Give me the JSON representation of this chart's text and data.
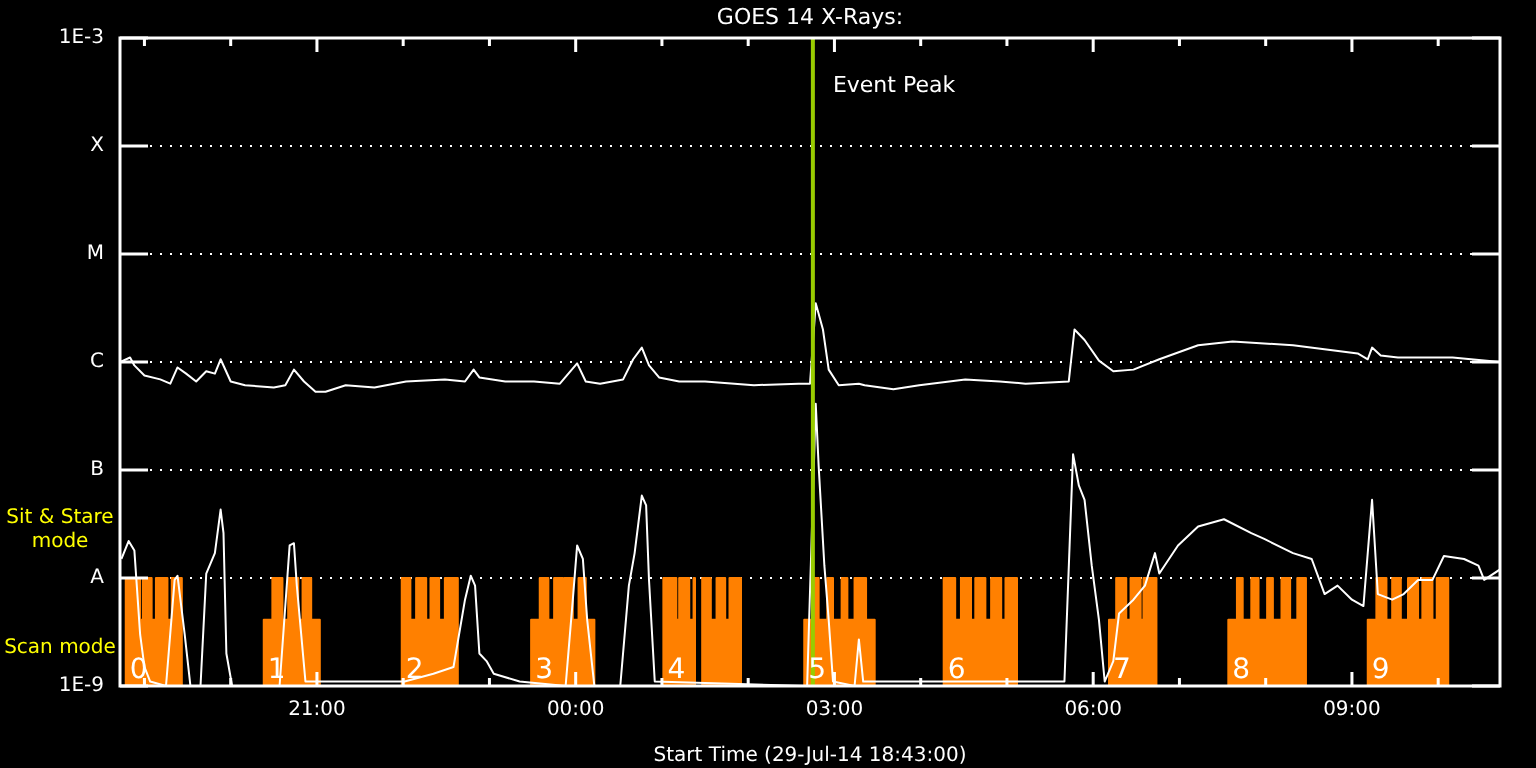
{
  "chart_data": {
    "type": "line",
    "title": "GOES 14 X-Rays:",
    "xlabel": "Start Time (29-Jul-14 18:43:00)",
    "log": "y",
    "grid": "y",
    "legend": false,
    "marker": "none",
    "xlim": [
      "--07-29T18:43",
      "--07-30T10:43"
    ],
    "xticks": [
      {
        "value": "--07-29T19:00",
        "label": null
      },
      {
        "value": "--07-29T20:00",
        "label": null
      },
      {
        "value": "--07-29T21:00",
        "label": "21:00"
      },
      {
        "value": "--07-29T22:00",
        "label": null
      },
      {
        "value": "--07-29T23:00",
        "label": null
      },
      {
        "value": "--07-30T00:00",
        "label": "00:00"
      },
      {
        "value": "--07-30T01:00",
        "label": null
      },
      {
        "value": "--07-30T02:00",
        "label": null
      },
      {
        "value": "--07-30T03:00",
        "label": "03:00"
      },
      {
        "value": "--07-30T04:00",
        "label": null
      },
      {
        "value": "--07-30T05:00",
        "label": null
      },
      {
        "value": "--07-30T06:00",
        "label": "06:00"
      },
      {
        "value": "--07-30T07:00",
        "label": null
      },
      {
        "value": "--07-30T08:00",
        "label": null
      },
      {
        "value": "--07-30T09:00",
        "label": "09:00"
      },
      {
        "value": "--07-30T10:00",
        "label": null
      }
    ],
    "ylim": [
      1e-09,
      0.001
    ],
    "yticks": [
      {
        "value": 1e-09,
        "label": "1E-9"
      },
      {
        "value": 1e-08,
        "label": "A"
      },
      {
        "value": 1e-07,
        "label": "B"
      },
      {
        "value": 1e-06,
        "label": "C"
      },
      {
        "value": 1e-05,
        "label": "M"
      },
      {
        "value": 0.0001,
        "label": "X"
      },
      {
        "value": 0.001,
        "label": "1E-3"
      }
    ],
    "ref_lines": [
      {
        "axis": "x",
        "value": "--07-30T02:45",
        "label": "Event Peak",
        "color": "#99cc00"
      }
    ],
    "annotations": [
      "Sit & Stare mode",
      "Scan mode",
      "0",
      "1",
      "2",
      "3",
      "4",
      "5",
      "6",
      "7",
      "8",
      "9"
    ],
    "series": [
      {
        "type": "line",
        "color": "#ffffff",
        "x": [
          "--07-29T18:43",
          "--07-29T18:50",
          "--07-29T18:53",
          "--07-29T19:00",
          "--07-29T19:11",
          "--07-29T19:18",
          "--07-29T19:23",
          "--07-29T19:29",
          "--07-29T19:36",
          "--07-29T19:43",
          "--07-29T19:49",
          "--07-29T19:53",
          "--07-29T20:00",
          "--07-29T20:10",
          "--07-29T20:30",
          "--07-29T20:38",
          "--07-29T20:44",
          "--07-29T20:51",
          "--07-29T20:59",
          "--07-29T21:06",
          "--07-29T21:20",
          "--07-29T21:40",
          "--07-29T22:02",
          "--07-29T22:29",
          "--07-29T22:43",
          "--07-29T22:49",
          "--07-29T22:53",
          "--07-29T23:11",
          "--07-29T23:31",
          "--07-29T23:49",
          "--07-30T00:01",
          "--07-30T00:07",
          "--07-30T00:17",
          "--07-30T00:33",
          "--07-30T00:40",
          "--07-30T00:46",
          "--07-30T00:51",
          "--07-30T00:58",
          "--07-30T01:12",
          "--07-30T01:30",
          "--07-30T02:04",
          "--07-30T02:35",
          "--07-30T02:43",
          "--07-30T02:47",
          "--07-30T02:52",
          "--07-30T02:56",
          "--07-30T03:03",
          "--07-30T03:17",
          "--07-30T03:21",
          "--07-30T03:41",
          "--07-30T03:59",
          "--07-30T04:31",
          "--07-30T04:55",
          "--07-30T05:13",
          "--07-30T05:43",
          "--07-30T05:47",
          "--07-30T05:54",
          "--07-30T06:04",
          "--07-30T06:14",
          "--07-30T06:28",
          "--07-30T06:46",
          "--07-30T07:13",
          "--07-30T07:37",
          "--07-30T08:19",
          "--07-30T09:04",
          "--07-30T09:11",
          "--07-30T09:14",
          "--07-30T09:20",
          "--07-30T09:32",
          "--07-30T10:10",
          "--07-30T10:43"
        ],
        "values": [
          1e-06,
          1.1e-06,
          9.3e-07,
          7.5e-07,
          6.9e-07,
          6.3e-07,
          8.9e-07,
          7.8e-07,
          6.6e-07,
          8.2e-07,
          7.8e-07,
          1.06e-06,
          6.6e-07,
          6.1e-07,
          5.8e-07,
          6.1e-07,
          8.5e-07,
          6.6e-07,
          5.3e-07,
          5.3e-07,
          6.1e-07,
          5.8e-07,
          6.6e-07,
          6.9e-07,
          6.6e-07,
          8.5e-07,
          7.2e-07,
          6.6e-07,
          6.6e-07,
          6.3e-07,
          9.7e-07,
          6.6e-07,
          6.3e-07,
          6.9e-07,
          1.06e-06,
          1.36e-06,
          9.3e-07,
          7.2e-07,
          6.6e-07,
          6.6e-07,
          6.1e-07,
          6.3e-07,
          6.3e-07,
          3.5e-06,
          2e-06,
          8.5e-07,
          6.1e-07,
          6.3e-07,
          6.1e-07,
          5.6e-07,
          6.1e-07,
          6.9e-07,
          6.6e-07,
          6.3e-07,
          6.6e-07,
          2e-06,
          1.6e-06,
          1.03e-06,
          8.2e-07,
          8.5e-07,
          1.06e-06,
          1.43e-06,
          1.55e-06,
          1.43e-06,
          1.2e-06,
          1.06e-06,
          1.36e-06,
          1.15e-06,
          1.1e-06,
          1.1e-06,
          1e-06
        ]
      },
      {
        "type": "line",
        "color": "#ffffff",
        "x": [
          "--07-29T18:44",
          "--07-29T18:49",
          "--07-29T18:53",
          "--07-29T18:57",
          "--07-29T19:00",
          "--07-29T19:04",
          "--07-29T19:15",
          "--07-29T19:21",
          "--07-29T19:23",
          "--07-29T19:28",
          "--07-29T19:32",
          "--07-29T19:39",
          "--07-29T19:43",
          "--07-29T19:49",
          "--07-29T19:53",
          "--07-29T19:55",
          "--07-29T19:57",
          "--07-29T20:01",
          "--07-29T20:34",
          "--07-29T20:41",
          "--07-29T20:44",
          "--07-29T20:46",
          "--07-29T20:52",
          "--07-29T22:01",
          "--07-29T22:21",
          "--07-29T22:35",
          "--07-29T22:43",
          "--07-29T22:47",
          "--07-29T22:50",
          "--07-29T22:53",
          "--07-29T22:58",
          "--07-29T23:03",
          "--07-29T23:21",
          "--07-29T23:53",
          "--07-29T23:58",
          "--07-30T00:01",
          "--07-30T00:05",
          "--07-30T00:08",
          "--07-30T00:13",
          "--07-30T00:31",
          "--07-30T00:37",
          "--07-30T00:41",
          "--07-30T00:46",
          "--07-30T00:49",
          "--07-30T00:51",
          "--07-30T00:55",
          "--07-30T02:41",
          "--07-30T02:47",
          "--07-30T02:49",
          "--07-30T02:53",
          "--07-30T02:56",
          "--07-30T02:59",
          "--07-30T03:14",
          "--07-30T03:17",
          "--07-30T03:20",
          "--07-30T05:40",
          "--07-30T05:46",
          "--07-30T05:50",
          "--07-30T05:54",
          "--07-30T05:59",
          "--07-30T06:04",
          "--07-30T06:08",
          "--07-30T06:14",
          "--07-30T06:18",
          "--07-30T06:28",
          "--07-30T06:36",
          "--07-30T06:43",
          "--07-30T06:46",
          "--07-30T06:59",
          "--07-30T07:13",
          "--07-30T07:31",
          "--07-30T07:50",
          "--07-30T07:59",
          "--07-30T08:19",
          "--07-30T08:32",
          "--07-30T08:41",
          "--07-30T08:50",
          "--07-30T09:00",
          "--07-30T09:08",
          "--07-30T09:14",
          "--07-30T09:18",
          "--07-30T09:28",
          "--07-30T09:36",
          "--07-30T09:46",
          "--07-30T09:56",
          "--07-30T10:04",
          "--07-30T10:18",
          "--07-30T10:28",
          "--07-30T10:32",
          "--07-30T10:43"
        ],
        "values": [
          1.5e-08,
          2.2e-08,
          1.8e-08,
          3e-09,
          1.5e-09,
          1.1e-09,
          1e-09,
          9.6e-09,
          1.05e-08,
          3e-09,
          1e-09,
          1e-09,
          1.1e-08,
          1.7e-08,
          4.3e-08,
          2.6e-08,
          2e-09,
          1e-09,
          1e-09,
          2e-08,
          2.1e-08,
          8.5e-09,
          1.1e-09,
          1.1e-09,
          1.3e-09,
          1.5e-09,
          6.3e-09,
          1.05e-08,
          8.5e-09,
          2e-09,
          1.7e-09,
          1.3e-09,
          1.1e-09,
          1e-09,
          6.3e-09,
          2e-08,
          1.5e-08,
          4.1e-09,
          1e-09,
          1e-09,
          8.5e-09,
          1.7e-08,
          5.8e-08,
          4.7e-08,
          9.6e-09,
          1.1e-09,
          1e-09,
          4.1e-07,
          1.1e-07,
          1.3e-08,
          4.1e-09,
          1.1e-09,
          1e-09,
          2.7e-09,
          1.1e-09,
          1.1e-09,
          1.4e-07,
          7.2e-08,
          5.3e-08,
          1.3e-08,
          4.1e-09,
          1.1e-09,
          1.7e-09,
          4.7e-09,
          6.3e-09,
          8.5e-09,
          1.7e-08,
          1.1e-08,
          2e-08,
          3e-08,
          3.5e-08,
          2.6e-08,
          2.3e-08,
          1.7e-08,
          1.5e-08,
          7.1e-09,
          8.5e-09,
          6.3e-09,
          5.5e-09,
          5.3e-08,
          7.1e-09,
          6.3e-09,
          7.1e-09,
          9.6e-09,
          9.6e-09,
          1.6e-08,
          1.5e-08,
          1.3e-08,
          9.6e-09,
          1.2e-08
        ]
      },
      {
        "type": "area",
        "color": "#ff8000",
        "x": [
          "--07-29T18:47",
          "--07-29T18:47",
          "--07-29T18:57",
          "--07-29T18:57",
          "--07-29T18:59",
          "--07-29T18:59",
          "--07-29T19:05",
          "--07-29T19:05",
          "--07-29T19:08",
          "--07-29T19:08",
          "--07-29T19:16",
          "--07-29T19:16",
          "--07-29T19:19",
          "--07-29T19:19",
          "--07-29T19:26",
          "--07-29T19:26",
          "--07-29T20:23",
          "--07-29T20:23",
          "--07-29T20:29",
          "--07-29T20:29",
          "--07-29T20:36",
          "--07-29T20:36",
          "--07-29T20:40",
          "--07-29T20:40",
          "--07-29T20:47",
          "--07-29T20:47",
          "--07-29T20:50",
          "--07-29T20:50",
          "--07-29T20:56",
          "--07-29T20:56",
          "--07-29T21:02",
          "--07-29T21:02",
          "--07-29T21:59",
          "--07-29T21:59",
          "--07-29T22:05",
          "--07-29T22:05",
          "--07-29T22:09",
          "--07-29T22:09",
          "--07-29T22:16",
          "--07-29T22:16",
          "--07-29T22:19",
          "--07-29T22:19",
          "--07-29T22:25",
          "--07-29T22:25",
          "--07-29T22:29",
          "--07-29T22:29",
          "--07-29T22:38",
          "--07-29T22:38",
          "--07-29T23:29",
          "--07-29T23:29",
          "--07-29T23:35",
          "--07-29T23:35",
          "--07-29T23:41",
          "--07-29T23:41",
          "--07-29T23:45",
          "--07-29T23:45",
          "--07-29T23:51",
          "--07-29T23:51",
          "--07-29T23:52",
          "--07-29T23:52",
          "--07-29T23:58",
          "--07-29T23:58",
          "--07-30T00:02",
          "--07-30T00:02",
          "--07-30T00:07",
          "--07-30T00:07",
          "--07-30T00:13",
          "--07-30T00:13",
          "--07-30T01:01",
          "--07-30T01:01",
          "--07-30T01:10",
          "--07-30T01:10",
          "--07-30T01:12",
          "--07-30T01:12",
          "--07-30T01:19",
          "--07-30T01:19",
          "--07-30T01:22",
          "--07-30T01:22",
          "--07-30T01:23",
          "--07-30T01:23",
          "--07-30T01:28",
          "--07-30T01:28",
          "--07-30T01:34",
          "--07-30T01:34",
          "--07-30T01:38",
          "--07-30T01:38",
          "--07-30T01:44",
          "--07-30T01:44",
          "--07-30T01:47",
          "--07-30T01:47",
          "--07-30T01:55",
          "--07-30T01:55",
          "--07-30T02:39",
          "--07-30T02:39",
          "--07-30T02:46",
          "--07-30T02:46",
          "--07-30T02:49",
          "--07-30T02:49",
          "--07-30T02:55",
          "--07-30T02:55",
          "--07-30T02:59",
          "--07-30T02:59",
          "--07-30T03:05",
          "--07-30T03:05",
          "--07-30T03:09",
          "--07-30T03:09",
          "--07-30T03:14",
          "--07-30T03:14",
          "--07-30T03:22",
          "--07-30T03:22",
          "--07-30T03:28",
          "--07-30T03:28",
          "--07-30T04:16",
          "--07-30T04:16",
          "--07-30T04:24",
          "--07-30T04:24",
          "--07-30T04:28",
          "--07-30T04:28",
          "--07-30T04:35",
          "--07-30T04:35",
          "--07-30T04:38",
          "--07-30T04:38",
          "--07-30T04:45",
          "--07-30T04:45",
          "--07-30T04:49",
          "--07-30T04:49",
          "--07-30T04:56",
          "--07-30T04:56",
          "--07-30T04:59",
          "--07-30T04:59",
          "--07-30T05:07",
          "--07-30T05:07",
          "--07-30T06:11",
          "--07-30T06:11",
          "--07-30T06:16",
          "--07-30T06:16",
          "--07-30T06:23",
          "--07-30T06:23",
          "--07-30T06:26",
          "--07-30T06:26",
          "--07-30T06:33",
          "--07-30T06:33",
          "--07-30T06:35",
          "--07-30T06:35",
          "--07-30T06:44",
          "--07-30T06:44",
          "--07-30T07:34",
          "--07-30T07:34",
          "--07-30T07:40",
          "--07-30T07:40",
          "--07-30T07:44",
          "--07-30T07:44",
          "--07-30T07:50",
          "--07-30T07:50",
          "--07-30T07:55",
          "--07-30T07:55",
          "--07-30T08:01",
          "--07-30T08:01",
          "--07-30T08:05",
          "--07-30T08:05",
          "--07-30T08:11",
          "--07-30T08:11",
          "--07-30T08:17",
          "--07-30T08:17",
          "--07-30T08:22",
          "--07-30T08:22",
          "--07-30T08:28",
          "--07-30T08:28",
          "--07-30T09:11",
          "--07-30T09:11",
          "--07-30T09:17",
          "--07-30T09:17",
          "--07-30T09:24",
          "--07-30T09:24",
          "--07-30T09:28",
          "--07-30T09:28",
          "--07-30T09:34",
          "--07-30T09:34",
          "--07-30T09:39",
          "--07-30T09:39",
          "--07-30T09:46",
          "--07-30T09:46",
          "--07-30T09:49",
          "--07-30T09:49",
          "--07-30T09:56",
          "--07-30T09:56",
          "--07-30T09:59",
          "--07-30T09:59",
          "--07-30T10:07",
          "--07-30T10:07"
        ],
        "values": [
          1e-09,
          1e-08,
          1e-08,
          4.1e-09,
          4.1e-09,
          1e-08,
          1e-08,
          4.1e-09,
          4.1e-09,
          1e-08,
          1e-08,
          4.1e-09,
          4.1e-09,
          1e-08,
          1e-08,
          1e-09,
          1e-09,
          4.1e-09,
          4.1e-09,
          1e-08,
          1e-08,
          4.1e-09,
          4.1e-09,
          1e-08,
          1e-08,
          4.1e-09,
          4.1e-09,
          1e-08,
          1e-08,
          4.1e-09,
          4.1e-09,
          1e-09,
          1e-09,
          1e-08,
          1e-08,
          4.1e-09,
          4.1e-09,
          1e-08,
          1e-08,
          4.1e-09,
          4.1e-09,
          1e-08,
          1e-08,
          4.1e-09,
          4.1e-09,
          1e-08,
          1e-08,
          1e-09,
          1e-09,
          4.1e-09,
          4.1e-09,
          1e-08,
          1e-08,
          4.1e-09,
          4.1e-09,
          1e-08,
          1e-08,
          4.1e-09,
          4.1e-09,
          1e-08,
          1e-08,
          4.1e-09,
          4.1e-09,
          1e-08,
          1e-08,
          4.1e-09,
          4.1e-09,
          1e-09,
          1e-09,
          1e-08,
          1e-08,
          4.1e-09,
          4.1e-09,
          1e-08,
          1e-08,
          4.1e-09,
          4.1e-09,
          1e-08,
          1e-08,
          1e-09,
          1e-09,
          1e-08,
          1e-08,
          4.1e-09,
          4.1e-09,
          1e-08,
          1e-08,
          4.1e-09,
          4.1e-09,
          1e-08,
          1e-08,
          1e-09,
          1e-09,
          4.1e-09,
          4.1e-09,
          1e-08,
          1e-08,
          4.1e-09,
          4.1e-09,
          1e-08,
          1e-08,
          4.1e-09,
          4.1e-09,
          1e-08,
          1e-08,
          4.1e-09,
          4.1e-09,
          1e-08,
          1e-08,
          4.1e-09,
          4.1e-09,
          1e-09,
          1e-09,
          1e-08,
          1e-08,
          4.1e-09,
          4.1e-09,
          1e-08,
          1e-08,
          4.1e-09,
          4.1e-09,
          1e-08,
          1e-08,
          4.1e-09,
          4.1e-09,
          1e-08,
          1e-08,
          4.1e-09,
          4.1e-09,
          1e-08,
          1e-08,
          1e-09,
          1e-09,
          4.1e-09,
          4.1e-09,
          1e-08,
          1e-08,
          4.1e-09,
          4.1e-09,
          1e-08,
          1e-08,
          4.1e-09,
          4.1e-09,
          1e-08,
          1e-08,
          1e-09,
          1e-09,
          4.1e-09,
          4.1e-09,
          1e-08,
          1e-08,
          4.1e-09,
          4.1e-09,
          1e-08,
          1e-08,
          4.1e-09,
          4.1e-09,
          1e-08,
          1e-08,
          4.1e-09,
          4.1e-09,
          1e-08,
          1e-08,
          4.1e-09,
          4.1e-09,
          1e-08,
          1e-08,
          1e-09,
          1e-09,
          4.1e-09,
          4.1e-09,
          1e-08,
          1e-08,
          4.1e-09,
          4.1e-09,
          1e-08,
          1e-08,
          4.1e-09,
          4.1e-09,
          1e-08,
          1e-08,
          4.1e-09,
          4.1e-09,
          1e-08,
          1e-08,
          4.1e-09,
          4.1e-09,
          1e-08,
          1e-08,
          1e-09
        ]
      }
    ]
  }
}
